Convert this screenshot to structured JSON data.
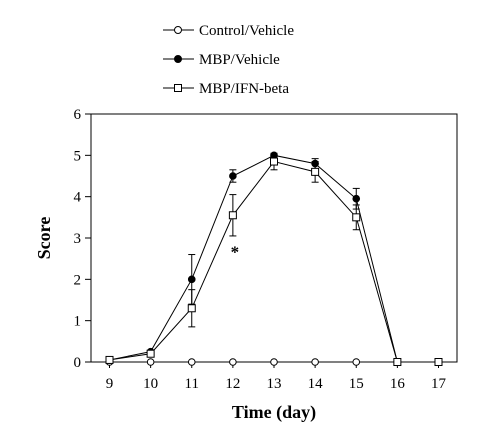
{
  "chart_data": {
    "type": "line",
    "title": "",
    "xlabel": "Time (day)",
    "ylabel": "Score",
    "xlim": [
      8.55,
      17.45
    ],
    "ylim": [
      0,
      6
    ],
    "x": [
      9,
      10,
      11,
      12,
      13,
      14,
      15,
      16,
      17
    ],
    "x_ticks": [
      "9",
      "10",
      "11",
      "12",
      "13",
      "14",
      "15",
      "16",
      "17"
    ],
    "y_ticks": [
      "0",
      "1",
      "2",
      "3",
      "4",
      "5",
      "6"
    ],
    "grid": false,
    "legend_position": "top-left",
    "series": [
      {
        "name": "Control/Vehicle",
        "marker": "open-circle",
        "values": [
          0,
          0,
          0,
          0,
          0,
          0,
          0,
          0,
          0
        ],
        "error": [
          0,
          0,
          0,
          0,
          0,
          0,
          0,
          0,
          0
        ]
      },
      {
        "name": "MBP/Vehicle",
        "marker": "filled-circle",
        "values": [
          0.05,
          0.25,
          2.0,
          4.5,
          5.0,
          4.8,
          3.95,
          0,
          0
        ],
        "error": [
          0,
          0,
          0.6,
          0.15,
          0,
          0.12,
          0.25,
          0,
          0
        ]
      },
      {
        "name": "MBP/IFN-beta",
        "marker": "open-square",
        "values": [
          0.05,
          0.2,
          1.3,
          3.55,
          4.85,
          4.6,
          3.5,
          0,
          0
        ],
        "error": [
          0,
          0,
          0.45,
          0.5,
          0.2,
          0.25,
          0.3,
          0,
          0
        ]
      }
    ],
    "annotations": [
      {
        "text": "*",
        "x": 12,
        "y": 2.75
      }
    ]
  }
}
